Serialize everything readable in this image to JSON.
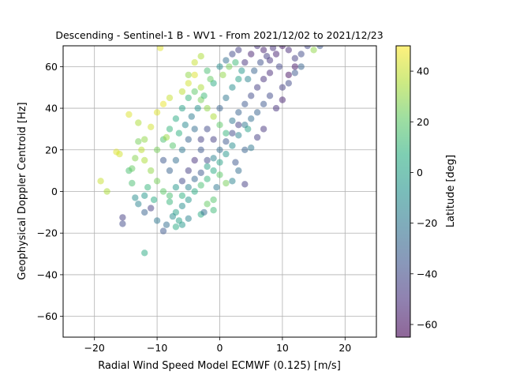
{
  "chart_data": {
    "type": "scatter",
    "title": "Descending - Sentinel-1 B - WV1 - From 2021/12/02 to 2021/12/23",
    "xlabel": "Radial Wind Speed Model ECMWF (0.125) [m/s]",
    "ylabel": "Geophysical Doppler Centroid [Hz]",
    "xlim": [
      -25,
      25
    ],
    "ylim": [
      -70,
      70
    ],
    "xticks": [
      -20,
      -10,
      0,
      10,
      20
    ],
    "yticks": [
      -60,
      -40,
      -20,
      0,
      20,
      40,
      60
    ],
    "xtick_labels": [
      "−20",
      "−10",
      "0",
      "10",
      "20"
    ],
    "ytick_labels": [
      "−60",
      "−40",
      "−20",
      "0",
      "20",
      "40",
      "60"
    ],
    "grid": true,
    "colorbar": {
      "label": "Latitude [deg]",
      "colormap": "viridis",
      "range": [
        -65,
        50
      ],
      "ticks": [
        -60,
        -40,
        -20,
        0,
        20,
        40
      ],
      "tick_labels": [
        "−60",
        "−40",
        "−20",
        "0",
        "20",
        "40"
      ]
    },
    "point_alpha": 0.5,
    "points_note_free": true,
    "points": [
      [
        -12,
        -29.5,
        5
      ],
      [
        -15.5,
        -12.5,
        -45
      ],
      [
        -15.5,
        -15.5,
        -40
      ],
      [
        -19,
        5,
        40
      ],
      [
        -18,
        0,
        35
      ],
      [
        -16,
        18,
        42
      ],
      [
        -16.5,
        19,
        44
      ],
      [
        -14.5,
        37,
        44
      ],
      [
        -13,
        33,
        35
      ],
      [
        -13,
        24,
        25
      ],
      [
        -12,
        25,
        30
      ],
      [
        -14.5,
        10,
        15
      ],
      [
        -14,
        4,
        15
      ],
      [
        -13.5,
        -3,
        -10
      ],
      [
        -13,
        -6,
        -15
      ],
      [
        -12,
        -10,
        -30
      ],
      [
        -11,
        -8,
        -45
      ],
      [
        -10,
        -14,
        -20
      ],
      [
        -9,
        -19,
        -35
      ],
      [
        -8.5,
        -16,
        -25
      ],
      [
        -7,
        -17,
        5
      ],
      [
        -6,
        -16,
        -5
      ],
      [
        -5,
        -13,
        -15
      ],
      [
        -3,
        -11,
        5
      ],
      [
        -2.5,
        -10,
        -25
      ],
      [
        -1,
        -9,
        12
      ],
      [
        -5,
        56,
        30
      ],
      [
        -4,
        62,
        40
      ],
      [
        -3,
        65,
        35
      ],
      [
        -2,
        58,
        15
      ],
      [
        -1,
        52,
        5
      ],
      [
        0,
        60,
        -10
      ],
      [
        1,
        63,
        -25
      ],
      [
        2,
        66,
        -40
      ],
      [
        3,
        68,
        -45
      ],
      [
        4,
        62,
        -50
      ],
      [
        5,
        66,
        -55
      ],
      [
        6,
        70,
        -50
      ],
      [
        7,
        68,
        -55
      ],
      [
        8,
        63,
        -48
      ],
      [
        9,
        66,
        -55
      ],
      [
        10,
        70,
        -58
      ],
      [
        11,
        68,
        -52
      ],
      [
        12,
        64,
        -45
      ],
      [
        13,
        66,
        -40
      ],
      [
        14,
        70,
        -42
      ],
      [
        15,
        68,
        30
      ],
      [
        16,
        70,
        -35
      ],
      [
        10,
        50,
        -45
      ],
      [
        11,
        52,
        -40
      ],
      [
        12,
        57,
        -35
      ],
      [
        13,
        60,
        -30
      ],
      [
        8,
        46,
        -40
      ],
      [
        7,
        42,
        -35
      ],
      [
        6,
        38,
        -30
      ],
      [
        5,
        35,
        -25
      ],
      [
        4,
        32,
        -20
      ],
      [
        3,
        27,
        -15
      ],
      [
        2,
        22,
        -10
      ],
      [
        1,
        18,
        -5
      ],
      [
        0,
        14,
        0
      ],
      [
        -1,
        10,
        5
      ],
      [
        -2,
        6,
        10
      ],
      [
        -3,
        3,
        15
      ],
      [
        -4,
        0,
        5
      ],
      [
        -5,
        -4,
        -5
      ],
      [
        -6,
        -7,
        -10
      ],
      [
        -7,
        -10,
        0
      ],
      [
        -8,
        -5,
        10
      ],
      [
        -9,
        0,
        20
      ],
      [
        -10,
        5,
        25
      ],
      [
        -11,
        10,
        30
      ],
      [
        -12,
        15,
        35
      ],
      [
        -10,
        20,
        25
      ],
      [
        -9,
        25,
        15
      ],
      [
        -8,
        30,
        10
      ],
      [
        -7,
        35,
        5
      ],
      [
        -6,
        40,
        0
      ],
      [
        -5,
        45,
        10
      ],
      [
        -4,
        48,
        20
      ],
      [
        -3,
        44,
        25
      ],
      [
        -2,
        40,
        30
      ],
      [
        -1,
        36,
        35
      ],
      [
        0,
        32,
        20
      ],
      [
        1,
        28,
        10
      ],
      [
        2,
        34,
        -20
      ],
      [
        3,
        38,
        -30
      ],
      [
        4,
        42,
        -35
      ],
      [
        5,
        46,
        -40
      ],
      [
        6,
        50,
        -45
      ],
      [
        7,
        54,
        -50
      ],
      [
        8,
        57,
        -52
      ],
      [
        -6,
        20,
        -20
      ],
      [
        -5,
        25,
        -30
      ],
      [
        -4,
        30,
        -25
      ],
      [
        -3,
        20,
        -35
      ],
      [
        -2,
        15,
        -40
      ],
      [
        -1,
        25,
        -45
      ],
      [
        0,
        40,
        -30
      ],
      [
        1,
        45,
        -20
      ],
      [
        2,
        50,
        -10
      ],
      [
        3,
        54,
        0
      ],
      [
        -7,
        15,
        -25
      ],
      [
        -8,
        10,
        -30
      ],
      [
        -9,
        15,
        -35
      ],
      [
        -6,
        5,
        -40
      ],
      [
        -5,
        10,
        -45
      ],
      [
        -4,
        15,
        -50
      ],
      [
        -3,
        25,
        -45
      ],
      [
        -2,
        30,
        -40
      ],
      [
        4,
        20,
        -30
      ],
      [
        5,
        21,
        -20
      ],
      [
        3,
        10,
        -25
      ],
      [
        4.5,
        30,
        0
      ],
      [
        2,
        5,
        -15
      ],
      [
        -0.5,
        2,
        -20
      ],
      [
        -14,
        11,
        22
      ],
      [
        -13.5,
        16,
        28
      ],
      [
        -12.5,
        20,
        38
      ],
      [
        -11,
        31,
        42
      ],
      [
        -10,
        38,
        44
      ],
      [
        -9,
        42,
        46
      ],
      [
        -8,
        45,
        40
      ],
      [
        -6,
        48,
        38
      ],
      [
        -5,
        52,
        42
      ],
      [
        -4,
        56,
        44
      ],
      [
        -3,
        50,
        35
      ],
      [
        -11.5,
        2,
        10
      ],
      [
        -12,
        -2,
        -5
      ],
      [
        -10.5,
        -4,
        5
      ],
      [
        -7.5,
        -12,
        -10
      ],
      [
        -6.5,
        -14,
        0
      ],
      [
        4,
        3.5,
        -45
      ],
      [
        2.5,
        14,
        -35
      ],
      [
        6,
        26,
        -45
      ],
      [
        7,
        30,
        -48
      ],
      [
        9,
        40,
        -50
      ],
      [
        10,
        44,
        -55
      ],
      [
        11,
        56,
        -60
      ],
      [
        12,
        60,
        -58
      ],
      [
        -9.5,
        69,
        45
      ],
      [
        -8.5,
        26,
        32
      ],
      [
        -7.5,
        22,
        18
      ],
      [
        -6.5,
        28,
        8
      ],
      [
        -5.5,
        32,
        -12
      ],
      [
        -4.5,
        36,
        -18
      ],
      [
        -3.5,
        40,
        -8
      ],
      [
        -2.5,
        46,
        12
      ],
      [
        -1.5,
        54,
        22
      ],
      [
        0.5,
        56,
        30
      ],
      [
        1.5,
        60,
        25
      ],
      [
        2.5,
        62,
        12
      ],
      [
        3.5,
        58,
        -5
      ],
      [
        4.5,
        54,
        -15
      ],
      [
        5.5,
        58,
        -30
      ],
      [
        6.5,
        62,
        -38
      ],
      [
        7.5,
        65,
        -45
      ],
      [
        8.5,
        69,
        -50
      ],
      [
        9.5,
        60,
        -42
      ],
      [
        -8,
        -2,
        15
      ],
      [
        -7,
        2,
        -5
      ],
      [
        -6,
        -2,
        8
      ],
      [
        -5,
        2,
        -15
      ],
      [
        -4,
        6,
        -28
      ],
      [
        -3,
        9,
        -35
      ],
      [
        -2,
        12,
        0
      ],
      [
        -1,
        16,
        -15
      ],
      [
        0,
        20,
        -25
      ],
      [
        1,
        24,
        -35
      ],
      [
        2,
        28,
        -40
      ],
      [
        3,
        32,
        -45
      ],
      [
        0,
        8,
        20
      ],
      [
        1,
        4,
        25
      ],
      [
        -1,
        -4,
        18
      ],
      [
        -2,
        -6,
        22
      ]
    ]
  }
}
